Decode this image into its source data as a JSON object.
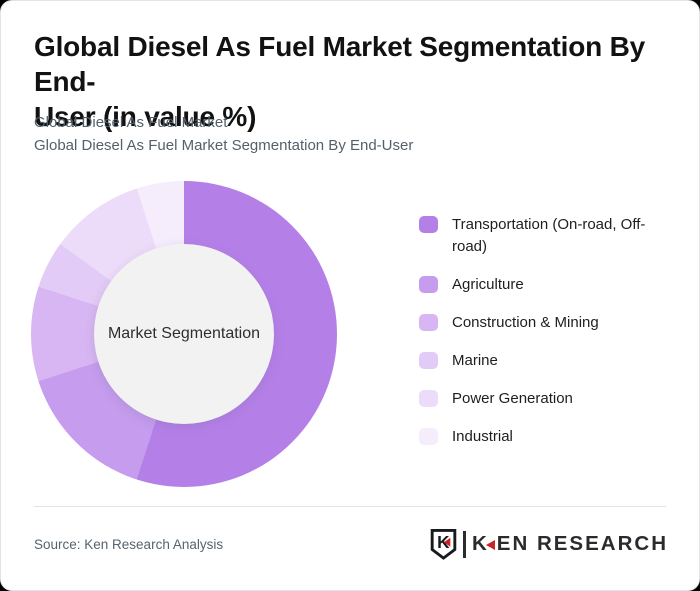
{
  "header": {
    "title_line1": "Global Diesel As Fuel Market Segmentation By End-",
    "title_line2": "User (in value %)",
    "subtitle_line1": "Global Diesel As Fuel Market",
    "subtitle_line2": "Global Diesel As Fuel Market Segmentation By End-User"
  },
  "chart_data": {
    "type": "pie",
    "variant": "donut",
    "title": "Global Diesel As Fuel Market Segmentation By End-User (in value %)",
    "center_label": "Market Segmentation",
    "unit": "percent of market value",
    "start_angle_deg": 0,
    "direction": "clockwise",
    "legend_position": "right",
    "categories": [
      "Transportation (On-road, Off-road)",
      "Agriculture",
      "Construction & Mining",
      "Marine",
      "Power Generation",
      "Industrial"
    ],
    "values": [
      55,
      15,
      10,
      5,
      10,
      5
    ],
    "colors": [
      "#b57fe8",
      "#c69cee",
      "#d8b6f3",
      "#e2cbf6",
      "#ecdcf9",
      "#f5edfc"
    ],
    "hole_color": "#f2f2f3"
  },
  "footer": {
    "source": "Source: Ken Research Analysis",
    "logo": {
      "emblem_letter": "K",
      "brand_first_letter": "K",
      "brand_rest": "EN RESEARCH",
      "accent_red": "#cb2128",
      "dark": "#2b2b2f"
    }
  },
  "theme": {
    "page_bg": "#000000",
    "card_bg": "#ffffff",
    "title_color": "#121212",
    "subtitle_color": "#53606c",
    "divider_color": "#e4e4e6"
  }
}
